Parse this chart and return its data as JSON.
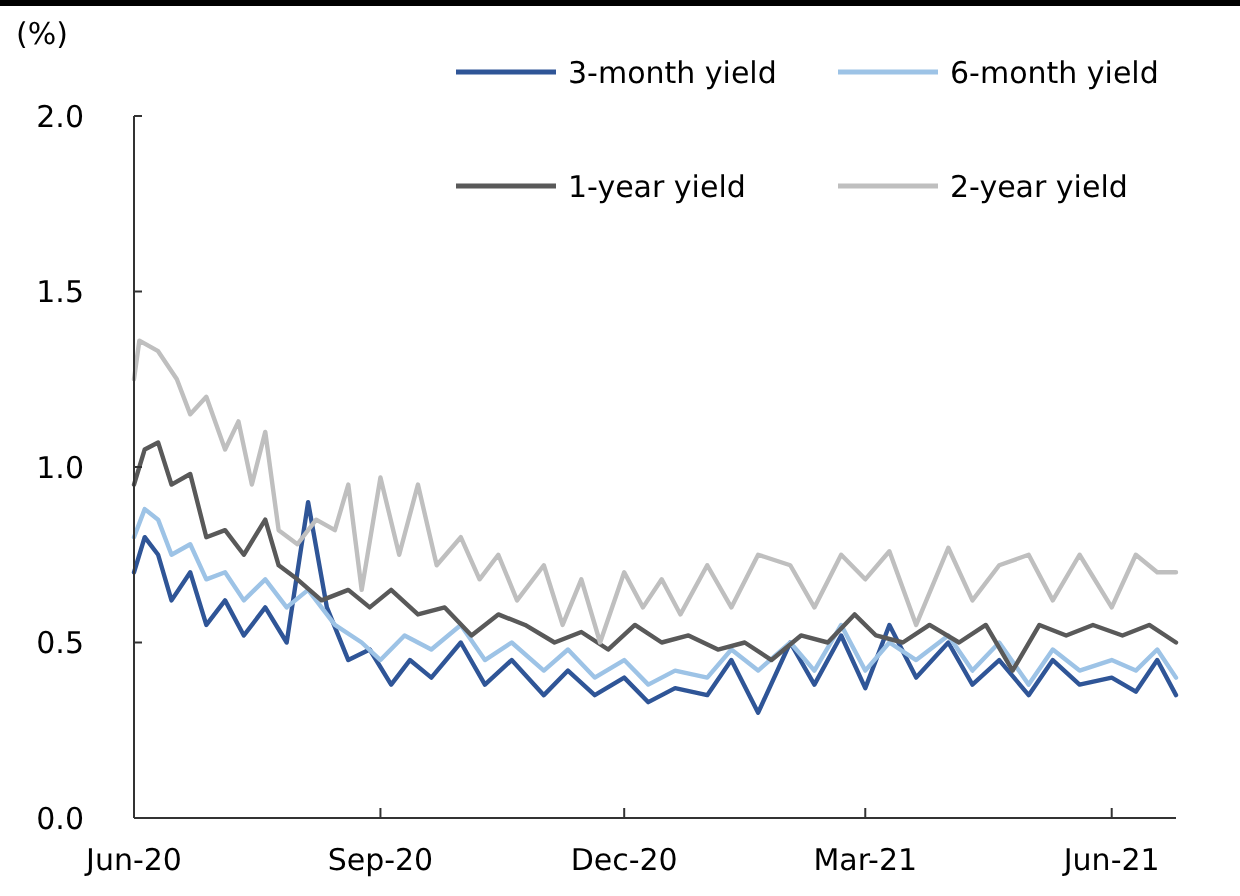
{
  "chart_data": {
    "type": "line",
    "ylabel": "(%)",
    "xlim": [
      "2020-06-01",
      "2021-06-25"
    ],
    "xticks": [
      {
        "value": "2020-06-01",
        "label": "Jun-20"
      },
      {
        "value": "2020-09-01",
        "label": "Sep-20"
      },
      {
        "value": "2020-12-01",
        "label": "Dec-20"
      },
      {
        "value": "2021-03-01",
        "label": "Mar-21"
      },
      {
        "value": "2021-06-01",
        "label": "Jun-21"
      }
    ],
    "ylim": [
      0,
      2
    ],
    "yticks": [
      {
        "value": 0,
        "label": "0.0"
      },
      {
        "value": 0.5,
        "label": "0.5"
      },
      {
        "value": 1,
        "label": "1.0"
      },
      {
        "value": 1.5,
        "label": "1.5"
      },
      {
        "value": 2,
        "label": "2.0"
      }
    ],
    "grid": false,
    "legend": "top right",
    "line_style": "solid",
    "series": [
      {
        "name": "3-month yield",
        "color": "#2f5597",
        "x": [
          "2020-06-01",
          "2020-06-05",
          "2020-06-10",
          "2020-06-15",
          "2020-06-22",
          "2020-06-28",
          "2020-07-05",
          "2020-07-12",
          "2020-07-20",
          "2020-07-28",
          "2020-08-05",
          "2020-08-12",
          "2020-08-20",
          "2020-08-28",
          "2020-09-05",
          "2020-09-12",
          "2020-09-20",
          "2020-10-01",
          "2020-10-10",
          "2020-10-20",
          "2020-11-01",
          "2020-11-10",
          "2020-11-20",
          "2020-12-01",
          "2020-12-10",
          "2020-12-20",
          "2021-01-01",
          "2021-01-10",
          "2021-01-20",
          "2021-02-01",
          "2021-02-10",
          "2021-02-20",
          "2021-03-01",
          "2021-03-10",
          "2021-03-20",
          "2021-04-01",
          "2021-04-10",
          "2021-04-20",
          "2021-05-01",
          "2021-05-10",
          "2021-05-20",
          "2021-06-01",
          "2021-06-10",
          "2021-06-18",
          "2021-06-25"
        ],
        "values": [
          0.7,
          0.8,
          0.75,
          0.62,
          0.7,
          0.55,
          0.62,
          0.52,
          0.6,
          0.5,
          0.9,
          0.6,
          0.45,
          0.48,
          0.38,
          0.45,
          0.4,
          0.5,
          0.38,
          0.45,
          0.35,
          0.42,
          0.35,
          0.4,
          0.33,
          0.37,
          0.35,
          0.45,
          0.3,
          0.5,
          0.38,
          0.52,
          0.37,
          0.55,
          0.4,
          0.5,
          0.38,
          0.45,
          0.35,
          0.45,
          0.38,
          0.4,
          0.36,
          0.45,
          0.35
        ]
      },
      {
        "name": "6-month yield",
        "color": "#9dc3e6",
        "x": [
          "2020-06-01",
          "2020-06-05",
          "2020-06-10",
          "2020-06-15",
          "2020-06-22",
          "2020-06-28",
          "2020-07-05",
          "2020-07-12",
          "2020-07-20",
          "2020-07-28",
          "2020-08-05",
          "2020-08-15",
          "2020-08-25",
          "2020-09-01",
          "2020-09-10",
          "2020-09-20",
          "2020-10-01",
          "2020-10-10",
          "2020-10-20",
          "2020-11-01",
          "2020-11-10",
          "2020-11-20",
          "2020-12-01",
          "2020-12-10",
          "2020-12-20",
          "2021-01-01",
          "2021-01-10",
          "2021-01-20",
          "2021-02-01",
          "2021-02-10",
          "2021-02-20",
          "2021-03-01",
          "2021-03-10",
          "2021-03-20",
          "2021-04-01",
          "2021-04-10",
          "2021-04-20",
          "2021-05-01",
          "2021-05-10",
          "2021-05-20",
          "2021-06-01",
          "2021-06-10",
          "2021-06-18",
          "2021-06-25"
        ],
        "values": [
          0.8,
          0.88,
          0.85,
          0.75,
          0.78,
          0.68,
          0.7,
          0.62,
          0.68,
          0.6,
          0.65,
          0.55,
          0.5,
          0.45,
          0.52,
          0.48,
          0.55,
          0.45,
          0.5,
          0.42,
          0.48,
          0.4,
          0.45,
          0.38,
          0.42,
          0.4,
          0.48,
          0.42,
          0.5,
          0.42,
          0.55,
          0.42,
          0.5,
          0.45,
          0.52,
          0.42,
          0.5,
          0.38,
          0.48,
          0.42,
          0.45,
          0.42,
          0.48,
          0.4
        ]
      },
      {
        "name": "1-year yield",
        "color": "#595959",
        "x": [
          "2020-06-01",
          "2020-06-05",
          "2020-06-10",
          "2020-06-15",
          "2020-06-22",
          "2020-06-28",
          "2020-07-05",
          "2020-07-12",
          "2020-07-20",
          "2020-07-25",
          "2020-08-01",
          "2020-08-10",
          "2020-08-20",
          "2020-08-28",
          "2020-09-05",
          "2020-09-15",
          "2020-09-25",
          "2020-10-05",
          "2020-10-15",
          "2020-10-25",
          "2020-11-05",
          "2020-11-15",
          "2020-11-25",
          "2020-12-05",
          "2020-12-15",
          "2020-12-25",
          "2021-01-05",
          "2021-01-15",
          "2021-01-25",
          "2021-02-05",
          "2021-02-15",
          "2021-02-25",
          "2021-03-05",
          "2021-03-15",
          "2021-03-25",
          "2021-04-05",
          "2021-04-15",
          "2021-04-25",
          "2021-05-05",
          "2021-05-15",
          "2021-05-25",
          "2021-06-05",
          "2021-06-15",
          "2021-06-25"
        ],
        "values": [
          0.95,
          1.05,
          1.07,
          0.95,
          0.98,
          0.8,
          0.82,
          0.75,
          0.85,
          0.72,
          0.68,
          0.62,
          0.65,
          0.6,
          0.65,
          0.58,
          0.6,
          0.52,
          0.58,
          0.55,
          0.5,
          0.53,
          0.48,
          0.55,
          0.5,
          0.52,
          0.48,
          0.5,
          0.45,
          0.52,
          0.5,
          0.58,
          0.52,
          0.5,
          0.55,
          0.5,
          0.55,
          0.42,
          0.55,
          0.52,
          0.55,
          0.52,
          0.55,
          0.5
        ]
      },
      {
        "name": "2-year yield",
        "color": "#bfbfbf",
        "x": [
          "2020-06-01",
          "2020-06-03",
          "2020-06-10",
          "2020-06-17",
          "2020-06-22",
          "2020-06-28",
          "2020-07-05",
          "2020-07-10",
          "2020-07-15",
          "2020-07-20",
          "2020-07-25",
          "2020-08-01",
          "2020-08-08",
          "2020-08-15",
          "2020-08-20",
          "2020-08-25",
          "2020-09-01",
          "2020-09-08",
          "2020-09-15",
          "2020-09-22",
          "2020-10-01",
          "2020-10-08",
          "2020-10-15",
          "2020-10-22",
          "2020-11-01",
          "2020-11-08",
          "2020-11-15",
          "2020-11-22",
          "2020-12-01",
          "2020-12-08",
          "2020-12-15",
          "2020-12-22",
          "2021-01-01",
          "2021-01-10",
          "2021-01-20",
          "2021-02-01",
          "2021-02-10",
          "2021-02-20",
          "2021-03-01",
          "2021-03-10",
          "2021-03-20",
          "2021-04-01",
          "2021-04-10",
          "2021-04-20",
          "2021-05-01",
          "2021-05-10",
          "2021-05-20",
          "2021-06-01",
          "2021-06-10",
          "2021-06-18",
          "2021-06-25"
        ],
        "values": [
          1.25,
          1.36,
          1.33,
          1.25,
          1.15,
          1.2,
          1.05,
          1.13,
          0.95,
          1.1,
          0.82,
          0.78,
          0.85,
          0.82,
          0.95,
          0.65,
          0.97,
          0.75,
          0.95,
          0.72,
          0.8,
          0.68,
          0.75,
          0.62,
          0.72,
          0.55,
          0.68,
          0.5,
          0.7,
          0.6,
          0.68,
          0.58,
          0.72,
          0.6,
          0.75,
          0.72,
          0.6,
          0.75,
          0.68,
          0.76,
          0.55,
          0.77,
          0.62,
          0.72,
          0.75,
          0.62,
          0.75,
          0.6,
          0.75,
          0.7,
          0.7
        ]
      }
    ]
  }
}
